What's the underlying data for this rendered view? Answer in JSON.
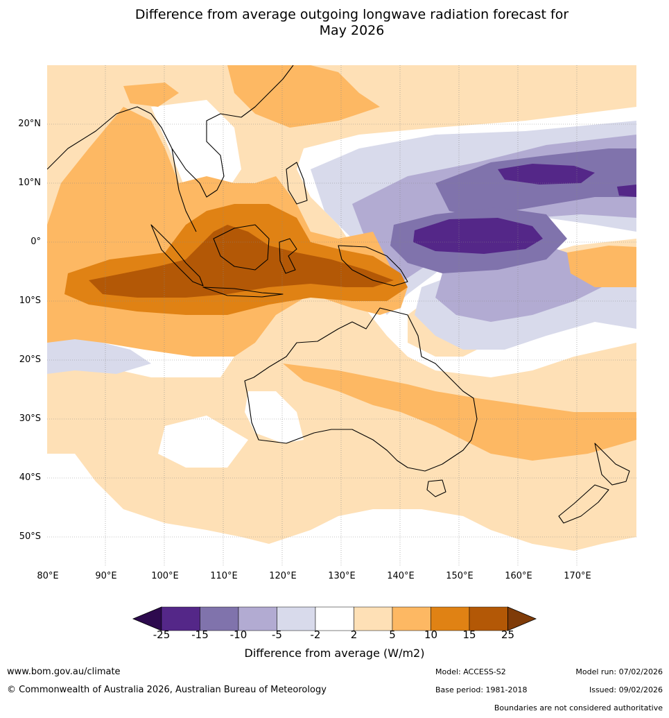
{
  "title": {
    "line1": "Difference from average outgoing longwave radiation forecast for",
    "line2": "May 2026"
  },
  "map": {
    "lat_labels": [
      "20°N",
      "10°N",
      "0°",
      "10°S",
      "20°S",
      "30°S",
      "40°S",
      "50°S"
    ],
    "lon_labels": [
      "80°E",
      "90°E",
      "100°E",
      "110°E",
      "120°E",
      "130°E",
      "140°E",
      "150°E",
      "160°E",
      "170°E"
    ]
  },
  "colorbar": {
    "ticks": [
      "-25",
      "-15",
      "-10",
      "-5",
      "-2",
      "2",
      "5",
      "10",
      "15",
      "25"
    ],
    "colors": {
      "lt_-25": "#2d0a4e",
      "-25_-15": "#542788",
      "-15_-10": "#8073ac",
      "-10_-5": "#b2abd2",
      "-5_-2": "#d8daeb",
      "-2_2": "#ffffff",
      "2_5": "#fee0b6",
      "5_10": "#fdb863",
      "10_15": "#e08214",
      "15_25": "#b35806",
      "gt_25": "#7f3b08"
    },
    "label": "Difference from average (W/m2)"
  },
  "footer": {
    "website": "www.bom.gov.au/climate",
    "copyright": "© Commonwealth of Australia 2026, Australian Bureau of Meteorology",
    "model": "Model: ACCESS-S2",
    "model_run": "Model run: 07/02/2026",
    "base_period": "Base period: 1981-2018",
    "issued": "Issued: 09/02/2026",
    "disclaimer": "Boundaries are not considered authoritative"
  }
}
